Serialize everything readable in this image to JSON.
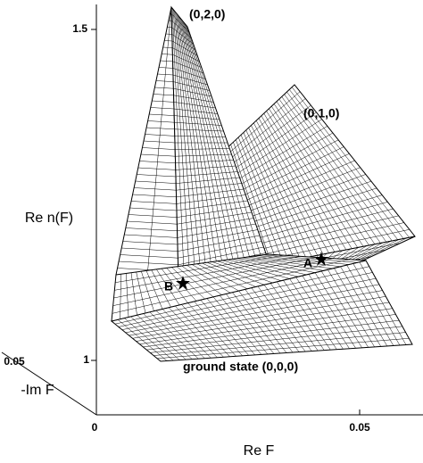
{
  "axes": {
    "z_label": "Re n(F)",
    "z_ticks": [
      "1.5",
      "1"
    ],
    "x_label": "Re F",
    "x_ticks": [
      "0",
      "0.05"
    ],
    "y_label": "-Im F",
    "y_ticks": [
      "0.05"
    ]
  },
  "annotations": {
    "peak_020": "(0,2,0)",
    "peak_010": "(0,1,0)",
    "point_a": "A",
    "point_b": "B",
    "ground": "ground state (0,0,0)"
  }
}
